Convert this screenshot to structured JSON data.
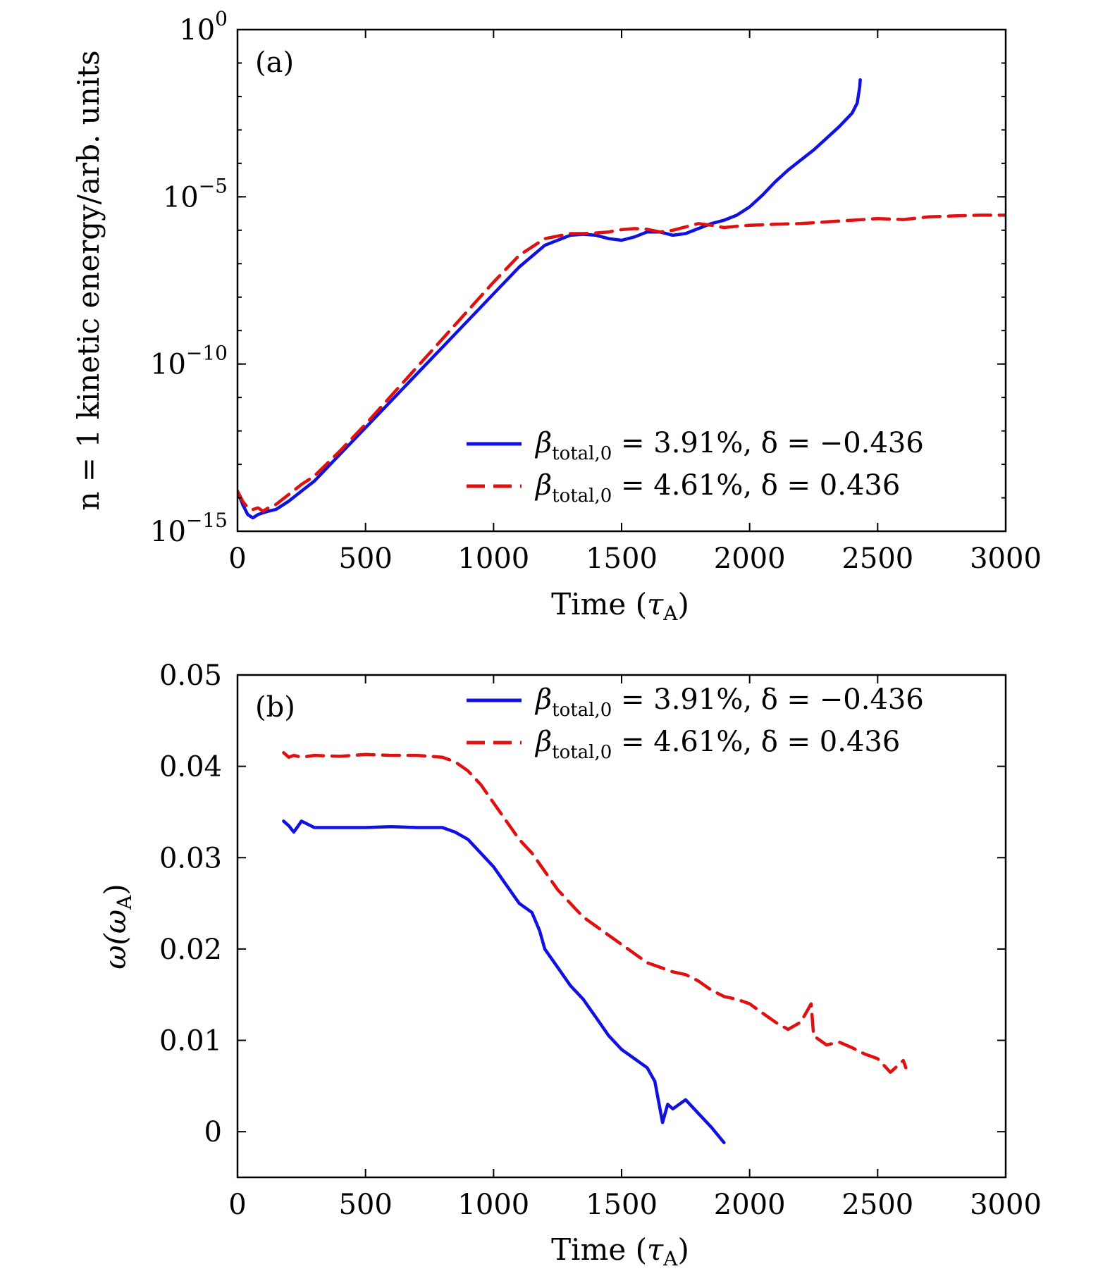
{
  "figure": {
    "charts": [
      {
        "panel_label": "(a)",
        "xlabel_text": "Time (",
        "xlabel_sym": "τ",
        "xlabel_sub": "A",
        "xlabel_close": ")",
        "ylabel_text": "n = 1 kinetic energy/arb. units",
        "xticks": [
          "0",
          "500",
          "1000",
          "1500",
          "2000",
          "2500",
          "3000"
        ],
        "yticks": [
          {
            "base": "10",
            "exp": "0"
          },
          {
            "base": "10",
            "exp": "−5"
          },
          {
            "base": "10",
            "exp": "−10"
          },
          {
            "base": "10",
            "exp": "−15"
          }
        ],
        "legend": [
          {
            "beta": "β",
            "sub": "total,0",
            "eq": " = 3.91%, δ = −0.436"
          },
          {
            "beta": "β",
            "sub": "total,0",
            "eq": " = 4.61%, δ = 0.436"
          }
        ]
      },
      {
        "panel_label": "(b)",
        "xlabel_text": "Time (",
        "xlabel_sym": "τ",
        "xlabel_sub": "A",
        "xlabel_close": ")",
        "ylabel_text": "ω(ω",
        "ylabel_sub": "A",
        "ylabel_close": ")",
        "xticks": [
          "0",
          "500",
          "1000",
          "1500",
          "2000",
          "2500",
          "3000"
        ],
        "yticks": [
          "0.05",
          "0.04",
          "0.03",
          "0.02",
          "0.01",
          "0"
        ],
        "legend": [
          {
            "beta": "β",
            "sub": "total,0",
            "eq": " = 3.91%, δ = −0.436"
          },
          {
            "beta": "β",
            "sub": "total,0",
            "eq": " = 4.61%, δ = 0.436"
          }
        ]
      }
    ]
  },
  "chart_data": [
    {
      "type": "line",
      "xlim": [
        0,
        3000
      ],
      "ylim": [
        -15,
        0
      ],
      "y_scale": "log10",
      "legend_position": "bottom-right",
      "colors": [
        "#1010e0",
        "#e01010"
      ],
      "line_styles": [
        "solid",
        "dashed"
      ],
      "series": [
        {
          "name": "β_total,0 = 3.91%, δ = −0.436",
          "x": [
            0,
            20,
            40,
            60,
            80,
            100,
            120,
            150,
            200,
            250,
            300,
            400,
            500,
            600,
            700,
            800,
            900,
            1000,
            1100,
            1200,
            1300,
            1350,
            1400,
            1450,
            1500,
            1550,
            1600,
            1650,
            1700,
            1750,
            1800,
            1850,
            1900,
            1950,
            2000,
            2050,
            2100,
            2150,
            2200,
            2250,
            2300,
            2350,
            2400,
            2420,
            2430,
            2432
          ],
          "y": [
            -13.8,
            -14.2,
            -14.5,
            -14.6,
            -14.5,
            -14.45,
            -14.4,
            -14.35,
            -14.1,
            -13.8,
            -13.5,
            -12.7,
            -11.9,
            -11.1,
            -10.3,
            -9.5,
            -8.7,
            -7.9,
            -7.1,
            -6.45,
            -6.15,
            -6.12,
            -6.15,
            -6.25,
            -6.3,
            -6.2,
            -6.05,
            -6.05,
            -6.15,
            -6.1,
            -5.95,
            -5.8,
            -5.7,
            -5.55,
            -5.3,
            -4.95,
            -4.55,
            -4.2,
            -3.9,
            -3.6,
            -3.25,
            -2.9,
            -2.5,
            -2.2,
            -1.7,
            -1.5
          ]
        },
        {
          "name": "β_total,0 = 4.61%, δ = 0.436",
          "x": [
            0,
            20,
            40,
            60,
            80,
            100,
            120,
            150,
            200,
            250,
            300,
            400,
            500,
            600,
            700,
            800,
            900,
            1000,
            1100,
            1200,
            1300,
            1350,
            1400,
            1450,
            1500,
            1550,
            1600,
            1650,
            1700,
            1750,
            1800,
            1850,
            1900,
            1950,
            2000,
            2100,
            2200,
            2300,
            2400,
            2500,
            2600,
            2700,
            2800,
            2900,
            3000
          ],
          "y": [
            -13.8,
            -14.1,
            -14.3,
            -14.35,
            -14.3,
            -14.4,
            -14.3,
            -14.2,
            -13.9,
            -13.6,
            -13.35,
            -12.6,
            -11.8,
            -10.95,
            -10.1,
            -9.25,
            -8.4,
            -7.55,
            -6.75,
            -6.25,
            -6.1,
            -6.1,
            -6.08,
            -6.05,
            -5.98,
            -5.95,
            -5.97,
            -6.05,
            -6.0,
            -5.9,
            -5.8,
            -5.85,
            -5.92,
            -5.88,
            -5.85,
            -5.82,
            -5.8,
            -5.75,
            -5.7,
            -5.65,
            -5.68,
            -5.6,
            -5.57,
            -5.55,
            -5.55
          ]
        }
      ]
    },
    {
      "type": "line",
      "xlim": [
        0,
        3000
      ],
      "ylim": [
        -0.005,
        0.05
      ],
      "legend_position": "top-right",
      "colors": [
        "#1010e0",
        "#e01010"
      ],
      "line_styles": [
        "solid",
        "dashed"
      ],
      "series": [
        {
          "name": "β_total,0 = 3.91%, δ = −0.436",
          "x": [
            180,
            200,
            220,
            250,
            300,
            400,
            500,
            600,
            700,
            800,
            850,
            900,
            950,
            1000,
            1050,
            1100,
            1150,
            1180,
            1200,
            1250,
            1300,
            1350,
            1400,
            1450,
            1500,
            1550,
            1600,
            1630,
            1660,
            1680,
            1700,
            1750,
            1800,
            1850,
            1900
          ],
          "y": [
            0.034,
            0.0335,
            0.0328,
            0.034,
            0.0333,
            0.0333,
            0.0333,
            0.0334,
            0.0333,
            0.0333,
            0.0328,
            0.032,
            0.0305,
            0.029,
            0.027,
            0.025,
            0.024,
            0.022,
            0.02,
            0.018,
            0.016,
            0.0145,
            0.0125,
            0.0105,
            0.009,
            0.008,
            0.007,
            0.0055,
            0.001,
            0.003,
            0.0025,
            0.0035,
            0.002,
            0.0005,
            -0.0012
          ]
        },
        {
          "name": "β_total,0 = 4.61%, δ = 0.436",
          "x": [
            180,
            200,
            220,
            250,
            300,
            400,
            500,
            600,
            700,
            800,
            850,
            900,
            950,
            1000,
            1050,
            1100,
            1150,
            1200,
            1250,
            1300,
            1350,
            1400,
            1450,
            1500,
            1550,
            1600,
            1650,
            1700,
            1750,
            1800,
            1850,
            1900,
            1950,
            2000,
            2050,
            2100,
            2150,
            2200,
            2240,
            2250,
            2300,
            2350,
            2400,
            2450,
            2500,
            2550,
            2600,
            2610
          ],
          "y": [
            0.0415,
            0.041,
            0.0412,
            0.041,
            0.0412,
            0.0411,
            0.0413,
            0.0412,
            0.0412,
            0.041,
            0.0405,
            0.0395,
            0.038,
            0.036,
            0.034,
            0.032,
            0.0305,
            0.0285,
            0.0265,
            0.025,
            0.0235,
            0.0225,
            0.0215,
            0.0205,
            0.0195,
            0.0185,
            0.018,
            0.0175,
            0.0172,
            0.0165,
            0.0155,
            0.0148,
            0.0145,
            0.014,
            0.013,
            0.012,
            0.0112,
            0.012,
            0.014,
            0.0105,
            0.0095,
            0.0098,
            0.0092,
            0.0085,
            0.008,
            0.0065,
            0.0078,
            0.007
          ]
        }
      ]
    }
  ]
}
